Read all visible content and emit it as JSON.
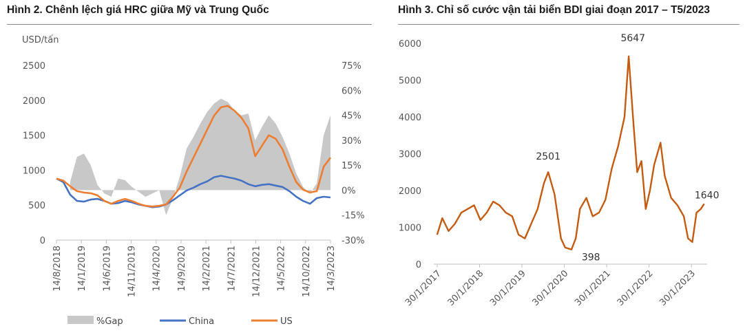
{
  "charts": [
    {
      "title": "Hình 2. Chênh lệch giá HRC giữa Mỹ và Trung Quốc",
      "unit_label": "USD/tấn",
      "chart_data": {
        "type": "line",
        "title": "Hình 2. Chênh lệch giá HRC giữa Mỹ và Trung Quốc",
        "ylabel": "USD/tấn",
        "ylim": [
          0,
          2500
        ],
        "y_ticks": [
          0,
          500,
          1000,
          1500,
          2000,
          2500
        ],
        "y2lim": [
          -0.3,
          0.75
        ],
        "y2_ticks": [
          "-30%",
          "-15%",
          "0%",
          "15%",
          "30%",
          "45%",
          "60%",
          "75%"
        ],
        "x_ticks": [
          "14/8/2018",
          "14/1/2019",
          "14/6/2019",
          "14/11/2019",
          "14/4/2020",
          "14/9/2020",
          "14/2/2021",
          "14/7/2021",
          "14/12/2021",
          "14/5/2022",
          "14/10/2022",
          "14/3/2023"
        ],
        "x": [
          0,
          2.5,
          5,
          7.5,
          10,
          12.5,
          15,
          17.5,
          20,
          22.5,
          25,
          27.5,
          30,
          32.5,
          35,
          37.5,
          40,
          42.5,
          45,
          47.5,
          50,
          52.5,
          55,
          57.5,
          60,
          62.5,
          65,
          67.5,
          70,
          72.5,
          75,
          77.5,
          80,
          82.5,
          85,
          87.5,
          90,
          92.5,
          95,
          97.5,
          100
        ],
        "legend": "bottom",
        "grid": false,
        "series": [
          {
            "name": "%Gap",
            "kind": "area",
            "axis": "right",
            "color": "#c8c8c8",
            "values": [
              null,
              null,
              0.05,
              0.2,
              0.22,
              0.15,
              0.03,
              -0.02,
              -0.04,
              0.07,
              0.06,
              0.02,
              -0.01,
              -0.04,
              -0.02,
              0.0,
              -0.15,
              -0.05,
              0.08,
              0.25,
              0.32,
              0.4,
              0.47,
              0.52,
              0.55,
              0.53,
              0.48,
              0.45,
              0.46,
              0.3,
              0.38,
              0.45,
              0.4,
              0.32,
              0.22,
              0.1,
              0.02,
              -0.02,
              0.04,
              0.33,
              0.45
            ]
          },
          {
            "name": "China",
            "kind": "line",
            "axis": "left",
            "color": "#4472c4",
            "values": [
              880,
              830,
              650,
              560,
              550,
              580,
              590,
              560,
              520,
              530,
              560,
              540,
              510,
              490,
              470,
              480,
              510,
              570,
              640,
              710,
              750,
              800,
              840,
              900,
              920,
              900,
              880,
              850,
              800,
              770,
              790,
              800,
              780,
              760,
              700,
              620,
              560,
              520,
              600,
              620,
              610
            ]
          },
          {
            "name": "US",
            "kind": "line",
            "axis": "left",
            "color": "#ed7d31",
            "values": [
              880,
              850,
              770,
              700,
              680,
              670,
              640,
              560,
              520,
              560,
              590,
              560,
              520,
              490,
              480,
              490,
              510,
              620,
              750,
              980,
              1180,
              1380,
              1580,
              1780,
              1900,
              1920,
              1850,
              1750,
              1600,
              1200,
              1350,
              1500,
              1450,
              1300,
              1050,
              830,
              720,
              680,
              700,
              1050,
              1180
            ]
          }
        ]
      }
    },
    {
      "title": "Hình 3. Chỉ số cước vận tải biển BDI giai đoạn 2017 – T5/2023",
      "chart_data": {
        "type": "line",
        "title": "Hình 3. Chỉ số cước vận tải biển BDI giai đoạn 2017 – T5/2023",
        "ylim": [
          0,
          6000
        ],
        "y_ticks": [
          0,
          1000,
          2000,
          3000,
          4000,
          5000,
          6000
        ],
        "x_ticks": [
          "30/1/2017",
          "30/1/2018",
          "30/1/2019",
          "30/1/2020",
          "30/1/2021",
          "30/1/2022",
          "30/1/2023"
        ],
        "x": [
          2017.08,
          2017.2,
          2017.35,
          2017.5,
          2017.65,
          2017.8,
          2017.95,
          2018.1,
          2018.25,
          2018.4,
          2018.55,
          2018.7,
          2018.85,
          2019.0,
          2019.15,
          2019.3,
          2019.45,
          2019.6,
          2019.7,
          2019.85,
          2020.0,
          2020.1,
          2020.25,
          2020.35,
          2020.45,
          2020.6,
          2020.75,
          2020.9,
          2021.05,
          2021.2,
          2021.35,
          2021.5,
          2021.6,
          2021.7,
          2021.8,
          2021.9,
          2022.0,
          2022.1,
          2022.2,
          2022.35,
          2022.45,
          2022.6,
          2022.75,
          2022.9,
          2023.0,
          2023.1,
          2023.2,
          2023.3,
          2023.38
        ],
        "legend": "none",
        "grid": false,
        "annotations": [
          {
            "text": "2501",
            "x": 2019.7,
            "y": 2501
          },
          {
            "text": "398",
            "x": 2020.35,
            "y": 398
          },
          {
            "text": "5647",
            "x": 2021.7,
            "y": 5647
          },
          {
            "text": "1640",
            "x": 2023.38,
            "y": 1640
          }
        ],
        "series": [
          {
            "name": "BDI",
            "color": "#c55a11",
            "values": [
              800,
              1250,
              900,
              1100,
              1400,
              1500,
              1600,
              1200,
              1400,
              1700,
              1600,
              1400,
              1300,
              800,
              700,
              1100,
              1500,
              2200,
              2501,
              1900,
              700,
              450,
              398,
              700,
              1500,
              1800,
              1300,
              1400,
              1750,
              2600,
              3200,
              4000,
              5647,
              4000,
              2500,
              2800,
              1500,
              2000,
              2700,
              3300,
              2400,
              1800,
              1600,
              1300,
              700,
              600,
              1400,
              1500,
              1640
            ]
          }
        ]
      }
    }
  ]
}
